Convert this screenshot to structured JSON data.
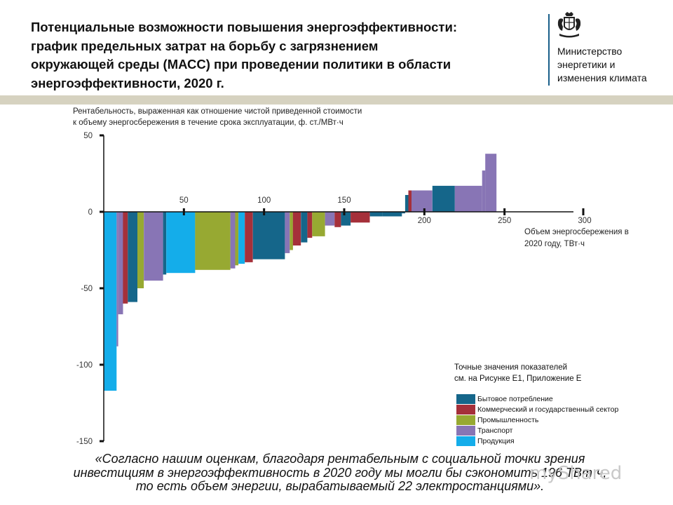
{
  "header": {
    "title_lines": [
      "Потенциальные возможности повышения энергоэффективности:",
      "график предельных затрат на борьбу с загрязнением",
      "окружающей среды (МАСС) при проведении политики в области",
      "энергоэффективности, 2020 г."
    ],
    "ministry_lines": [
      "Министерство",
      "энергетики и",
      "изменения климата"
    ],
    "crest_icon": "royal-coat-of-arms-icon"
  },
  "chart_data": {
    "type": "bar",
    "subtype": "marginal abatement cost curve (variable-width bars)",
    "ylabel_lines": [
      "Рентабельность, выраженная как отношение чистой приведенной стоимости",
      "к объему энергосбережения в течение срока эксплуатации, ф. ст./МВт·ч"
    ],
    "xlabel_lines": [
      "Объем энергосбережения в",
      "2020 году, ТВт·ч"
    ],
    "x_ticks": [
      "50",
      "100",
      "150",
      "200",
      "250",
      "300"
    ],
    "x_tick_values": [
      50,
      100,
      150,
      200,
      250,
      300
    ],
    "y_ticks": [
      "50",
      "0",
      "-50",
      "-100",
      "-150"
    ],
    "y_tick_values": [
      50,
      0,
      -50,
      -100,
      -150
    ],
    "xlim": [
      0,
      300
    ],
    "ylim": [
      -150,
      50
    ],
    "grid": false,
    "sector_colors": {
      "household": "#15668a",
      "commercial": "#a5303a",
      "industry": "#97a932",
      "transport": "#8875b5",
      "products": "#14adea"
    },
    "series": [
      {
        "x0": 0,
        "x1": 8,
        "value": -117,
        "sector": "products"
      },
      {
        "x0": 8,
        "x1": 9,
        "value": -88,
        "sector": "transport"
      },
      {
        "x0": 9,
        "x1": 12,
        "value": -67,
        "sector": "transport"
      },
      {
        "x0": 12,
        "x1": 15,
        "value": -60,
        "sector": "commercial"
      },
      {
        "x0": 15,
        "x1": 21,
        "value": -59,
        "sector": "household"
      },
      {
        "x0": 21,
        "x1": 25,
        "value": -50,
        "sector": "industry"
      },
      {
        "x0": 25,
        "x1": 37,
        "value": -45,
        "sector": "transport"
      },
      {
        "x0": 37,
        "x1": 39,
        "value": -41,
        "sector": "household"
      },
      {
        "x0": 39,
        "x1": 57,
        "value": -40,
        "sector": "products"
      },
      {
        "x0": 57,
        "x1": 79,
        "value": -38,
        "sector": "industry"
      },
      {
        "x0": 79,
        "x1": 82,
        "value": -37,
        "sector": "transport"
      },
      {
        "x0": 82,
        "x1": 84,
        "value": -35,
        "sector": "industry"
      },
      {
        "x0": 84,
        "x1": 88,
        "value": -34,
        "sector": "products"
      },
      {
        "x0": 88,
        "x1": 93,
        "value": -33,
        "sector": "commercial"
      },
      {
        "x0": 93,
        "x1": 113,
        "value": -31,
        "sector": "household"
      },
      {
        "x0": 113,
        "x1": 116,
        "value": -27,
        "sector": "transport"
      },
      {
        "x0": 116,
        "x1": 118,
        "value": -25,
        "sector": "industry"
      },
      {
        "x0": 118,
        "x1": 123,
        "value": -22,
        "sector": "commercial"
      },
      {
        "x0": 123,
        "x1": 127,
        "value": -20,
        "sector": "household"
      },
      {
        "x0": 127,
        "x1": 130,
        "value": -17,
        "sector": "commercial"
      },
      {
        "x0": 130,
        "x1": 138,
        "value": -16,
        "sector": "industry"
      },
      {
        "x0": 138,
        "x1": 144,
        "value": -9,
        "sector": "transport"
      },
      {
        "x0": 144,
        "x1": 148,
        "value": -10,
        "sector": "commercial"
      },
      {
        "x0": 148,
        "x1": 154,
        "value": -9,
        "sector": "household"
      },
      {
        "x0": 154,
        "x1": 166,
        "value": -7,
        "sector": "commercial"
      },
      {
        "x0": 166,
        "x1": 174,
        "value": -3,
        "sector": "household"
      },
      {
        "x0": 174,
        "x1": 186,
        "value": -3,
        "sector": "household"
      },
      {
        "x0": 186,
        "x1": 188,
        "value": -1,
        "sector": "household"
      },
      {
        "x0": 188,
        "x1": 190,
        "value": 11,
        "sector": "household"
      },
      {
        "x0": 190,
        "x1": 192,
        "value": 14,
        "sector": "commercial"
      },
      {
        "x0": 192,
        "x1": 205,
        "value": 14,
        "sector": "transport"
      },
      {
        "x0": 205,
        "x1": 219,
        "value": 17,
        "sector": "household"
      },
      {
        "x0": 219,
        "x1": 236,
        "value": 17,
        "sector": "transport"
      },
      {
        "x0": 236,
        "x1": 238,
        "value": 27,
        "sector": "transport"
      },
      {
        "x0": 238,
        "x1": 245,
        "value": 38,
        "sector": "transport"
      }
    ]
  },
  "notes": {
    "reference_lines": [
      "Точные значения показателей",
      "см. на Рисунке E1, Приложение E"
    ]
  },
  "legend": [
    {
      "label": "Бытовое потребление",
      "color": "#15668a"
    },
    {
      "label": "Коммерческий и государственный сектор",
      "color": "#a5303a"
    },
    {
      "label": "Промышленность",
      "color": "#97a932"
    },
    {
      "label": "Транспорт",
      "color": "#8875b5"
    },
    {
      "label": "Продукция",
      "color": "#14adea"
    }
  ],
  "quote_lines": [
    "«Согласно нашим оценкам, благодаря рентабельным с социальной точки зрения",
    "инвестициям в энергоэффективность в 2020 году мы могли бы сэкономить 196 ТВт·ч,",
    "то есть объем энергии, вырабатываемый 22 электростанциями»."
  ],
  "watermark": "myShared"
}
